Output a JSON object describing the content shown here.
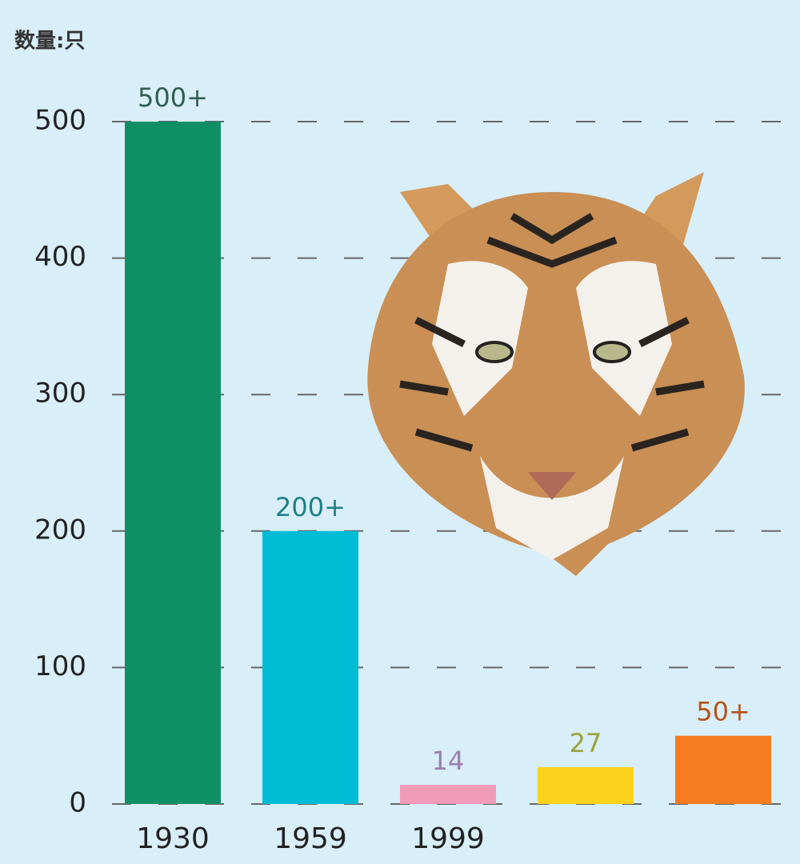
{
  "chart_data": {
    "type": "bar",
    "y_label": "数量:只",
    "categories": [
      "1930",
      "1959",
      "1999",
      null,
      null
    ],
    "values": [
      500,
      200,
      14,
      27,
      50
    ],
    "value_labels": [
      "500+",
      "200+",
      "14",
      "27",
      "50+"
    ],
    "colors": [
      "#0e9064",
      "#00bcd4",
      "#f29bb9",
      "#fdd21c",
      "#f57c20"
    ],
    "label_colors": [
      "#2f5e4e",
      "#1f7f86",
      "#9a7fb0",
      "#9aa43a",
      "#b4541a"
    ],
    "ylim": [
      0,
      500
    ],
    "yticks": [
      0,
      100,
      200,
      300,
      400,
      500
    ],
    "grid": true
  }
}
